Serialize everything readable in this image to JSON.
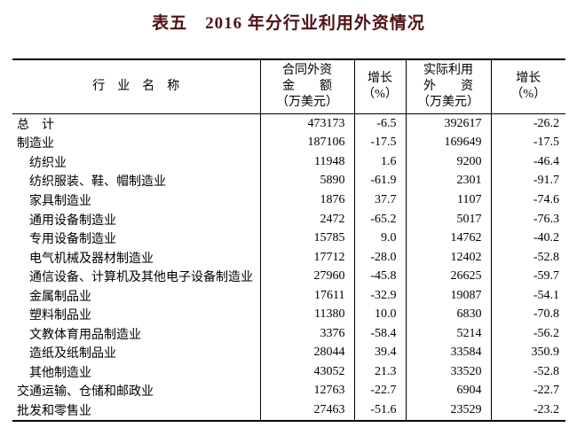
{
  "title": "表五　2016 年分行业利用外资情况",
  "colors": {
    "title_text": "#4e1214",
    "body_text": "#000000",
    "border": "#000000",
    "background": "#ffffff"
  },
  "table": {
    "headers": {
      "industry": "行　业　名　称",
      "contracted": "合同外资\n金　　额\n（万美元）",
      "growth1": "增长\n（%）",
      "utilized": "实际利用\n外　　资\n（万美元）",
      "growth2": "增长\n（%）"
    },
    "rows": [
      {
        "industry": "总　计",
        "indent": 0,
        "contracted": "473173",
        "growth1": "-6.5",
        "utilized": "392617",
        "growth2": "-26.2"
      },
      {
        "industry": "制造业",
        "indent": 0,
        "contracted": "187106",
        "growth1": "-17.5",
        "utilized": "169649",
        "growth2": "-17.5"
      },
      {
        "industry": "纺织业",
        "indent": 1,
        "contracted": "11948",
        "growth1": "1.6",
        "utilized": "9200",
        "growth2": "-46.4"
      },
      {
        "industry": "纺织服装、鞋、帽制造业",
        "indent": 1,
        "contracted": "5890",
        "growth1": "-61.9",
        "utilized": "2301",
        "growth2": "-91.7"
      },
      {
        "industry": "家具制造业",
        "indent": 1,
        "contracted": "1876",
        "growth1": "37.7",
        "utilized": "1107",
        "growth2": "-74.6"
      },
      {
        "industry": "通用设备制造业",
        "indent": 1,
        "contracted": "2472",
        "growth1": "-65.2",
        "utilized": "5017",
        "growth2": "-76.3"
      },
      {
        "industry": "专用设备制造业",
        "indent": 1,
        "contracted": "15785",
        "growth1": "9.0",
        "utilized": "14762",
        "growth2": "-40.2"
      },
      {
        "industry": "电气机械及器材制造业",
        "indent": 1,
        "contracted": "17712",
        "growth1": "-28.0",
        "utilized": "12402",
        "growth2": "-52.8"
      },
      {
        "industry": "通信设备、计算机及其他电子设备制造业",
        "indent": 1,
        "contracted": "27960",
        "growth1": "-45.8",
        "utilized": "26625",
        "growth2": "-59.7"
      },
      {
        "industry": "金属制品业",
        "indent": 1,
        "contracted": "17611",
        "growth1": "-32.9",
        "utilized": "19087",
        "growth2": "-54.1"
      },
      {
        "industry": "塑料制品业",
        "indent": 1,
        "contracted": "11380",
        "growth1": "10.0",
        "utilized": "6830",
        "growth2": "-70.8"
      },
      {
        "industry": "文教体育用品制造业",
        "indent": 1,
        "contracted": "3376",
        "growth1": "-58.4",
        "utilized": "5214",
        "growth2": "-56.2"
      },
      {
        "industry": "造纸及纸制品业",
        "indent": 1,
        "contracted": "28044",
        "growth1": "39.4",
        "utilized": "33584",
        "growth2": "350.9"
      },
      {
        "industry": "其他制造业",
        "indent": 1,
        "contracted": "43052",
        "growth1": "21.3",
        "utilized": "33520",
        "growth2": "-52.8"
      },
      {
        "industry": "交通运输、仓储和邮政业",
        "indent": 0,
        "contracted": "12763",
        "growth1": "-22.7",
        "utilized": "6904",
        "growth2": "-22.7"
      },
      {
        "industry": "批发和零售业",
        "indent": 0,
        "contracted": "27463",
        "growth1": "-51.6",
        "utilized": "23529",
        "growth2": "-23.2"
      }
    ]
  }
}
